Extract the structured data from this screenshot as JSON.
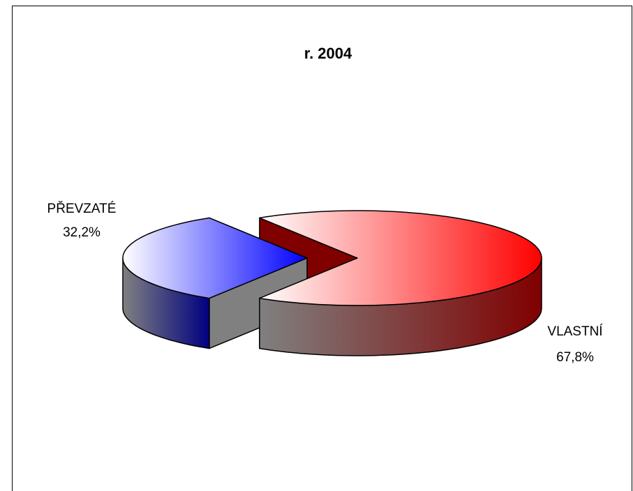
{
  "chart_data": {
    "type": "pie",
    "title": "r. 2004",
    "categories": [
      "PŘEVZATÉ",
      "VLASTNÍ"
    ],
    "values": [
      32.2,
      67.8
    ],
    "value_labels": [
      "32,2%",
      "67,8%"
    ],
    "colors": [
      "#0000ff",
      "#ff0000"
    ]
  }
}
